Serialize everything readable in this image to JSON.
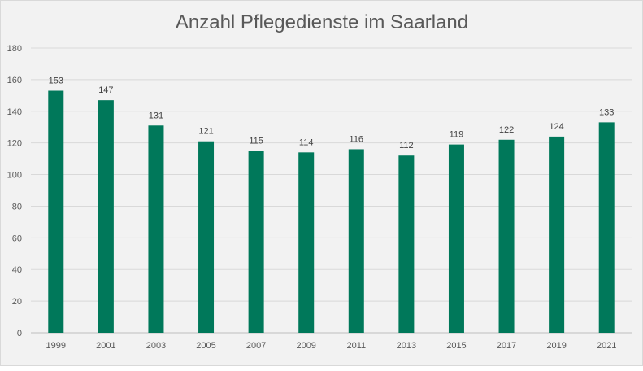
{
  "chart_data": {
    "type": "bar",
    "title": "Anzahl Pflegedienste im Saarland",
    "xlabel": "",
    "ylabel": "",
    "categories": [
      "1999",
      "2001",
      "2003",
      "2005",
      "2007",
      "2009",
      "2011",
      "2013",
      "2015",
      "2017",
      "2019",
      "2021"
    ],
    "values": [
      153,
      147,
      131,
      121,
      115,
      114,
      116,
      112,
      119,
      122,
      124,
      133
    ],
    "ylim": [
      0,
      180
    ],
    "yticks": [
      0,
      20,
      40,
      60,
      80,
      100,
      120,
      140,
      160,
      180
    ],
    "grid": true,
    "legend": "none",
    "data_labels": true,
    "bar_color": "#00785a",
    "background_color": "#f2f2f2"
  }
}
